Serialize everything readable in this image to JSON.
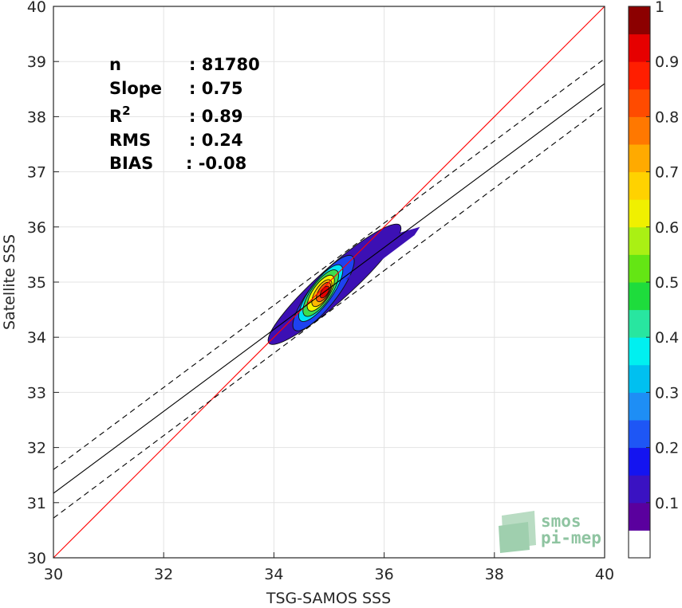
{
  "chart_data": {
    "type": "contour",
    "xlabel": "TSG-SAMOS SSS",
    "ylabel": "Satellite SSS",
    "xlim": [
      30,
      40
    ],
    "ylim": [
      30,
      40
    ],
    "xticks": [
      30,
      32,
      34,
      36,
      38,
      40
    ],
    "yticks": [
      30,
      31,
      32,
      33,
      34,
      35,
      36,
      37,
      38,
      39,
      40
    ],
    "grid": true,
    "stats": [
      {
        "label": "n",
        "value": ": 81780"
      },
      {
        "label": "Slope",
        "value": ": 0.75"
      },
      {
        "label": "R",
        "sup": "2",
        "value": ": 0.89"
      },
      {
        "label": "RMS",
        "value": ": 0.24"
      },
      {
        "label": "BIAS",
        "value": ": -0.08"
      }
    ],
    "lines": [
      {
        "kind": "one-to-one",
        "color": "#ff0000",
        "style": "solid",
        "points": [
          [
            30,
            30
          ],
          [
            40,
            40
          ]
        ]
      },
      {
        "kind": "regression",
        "color": "#000000",
        "style": "solid",
        "points": [
          [
            30,
            31.17
          ],
          [
            40,
            38.6
          ]
        ]
      },
      {
        "kind": "regression-upper",
        "color": "#000000",
        "style": "dashed",
        "points": [
          [
            30,
            31.6
          ],
          [
            40,
            39.05
          ]
        ]
      },
      {
        "kind": "regression-lower",
        "color": "#000000",
        "style": "dashed",
        "points": [
          [
            30,
            30.72
          ],
          [
            40,
            38.2
          ]
        ]
      }
    ],
    "density_levels": [
      {
        "level": 0.05,
        "color": "#3c10b4",
        "center": [
          35.1,
          34.96
        ],
        "rx": 1.6,
        "ry": 0.3,
        "rotate_deg": -42
      },
      {
        "level": 0.2,
        "color": "#1e42f0",
        "center": [
          34.9,
          34.8
        ],
        "rx": 0.85,
        "ry": 0.24,
        "rotate_deg": -52
      },
      {
        "level": 0.4,
        "color": "#00e4f5",
        "center": [
          34.85,
          34.8
        ],
        "rx": 0.62,
        "ry": 0.2,
        "rotate_deg": -54
      },
      {
        "level": 0.5,
        "color": "#3fdc4d",
        "center": [
          34.85,
          34.8
        ],
        "rx": 0.5,
        "ry": 0.18,
        "rotate_deg": -55
      },
      {
        "level": 0.6,
        "color": "#f5f500",
        "center": [
          34.85,
          34.8
        ],
        "rx": 0.38,
        "ry": 0.15,
        "rotate_deg": -56
      },
      {
        "level": 0.7,
        "color": "#ffb800",
        "center": [
          34.87,
          34.8
        ],
        "rx": 0.28,
        "ry": 0.12,
        "rotate_deg": -57
      },
      {
        "level": 0.8,
        "color": "#ff5a0a",
        "center": [
          34.9,
          34.82
        ],
        "rx": 0.2,
        "ry": 0.09,
        "rotate_deg": -58
      },
      {
        "level": 0.9,
        "color": "#e60000",
        "center": [
          34.92,
          34.82
        ],
        "rx": 0.12,
        "ry": 0.06,
        "rotate_deg": -58
      }
    ],
    "colorbar": {
      "min": 0,
      "max": 1,
      "ticks": [
        0.1,
        0.2,
        0.3,
        0.4,
        0.5,
        0.6,
        0.7,
        0.8,
        0.9,
        1
      ],
      "tick_labels": [
        "0.1",
        "0.2",
        "0.3",
        "0.4",
        "0.5",
        "0.6",
        "0.7",
        "0.8",
        "0.9",
        "1"
      ],
      "colors": [
        "#ffffff",
        "#5a009e",
        "#3a12c2",
        "#1414f0",
        "#1e56f5",
        "#1e8ef5",
        "#00c0f0",
        "#00f0f0",
        "#28e6a0",
        "#1edc3c",
        "#64e614",
        "#aaf014",
        "#f0f000",
        "#ffd200",
        "#ffaa00",
        "#ff7800",
        "#ff4b00",
        "#ff1e00",
        "#e60000",
        "#8c0000"
      ]
    }
  },
  "logo": {
    "line1": "smos",
    "line2": "pi-mep"
  }
}
